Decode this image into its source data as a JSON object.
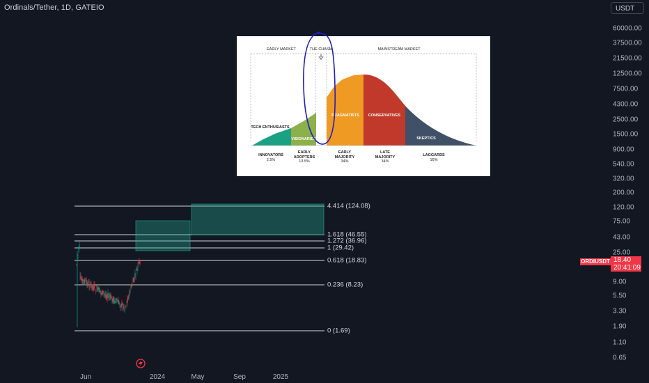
{
  "header": {
    "title": "Ordinals/Tether, 1D, GATEIO",
    "currency": "USDT"
  },
  "price_axis": {
    "labels": [
      "60000.00",
      "37500.00",
      "21500.00",
      "12500.00",
      "7500.00",
      "4300.00",
      "2500.00",
      "1500.00",
      "900.00",
      "540.00",
      "320.00",
      "200.00",
      "120.00",
      "75.00",
      "43.00",
      "25.00",
      "9.00",
      "5.50",
      "3.30",
      "1.90",
      "1.10",
      "0.65"
    ]
  },
  "time_axis": {
    "labels": [
      "Jun",
      "2024",
      "May",
      "Sep",
      "2025"
    ]
  },
  "fib_levels": [
    {
      "label": "4.414 (124.08)",
      "value": 124.08
    },
    {
      "label": "1.618 (46.55)",
      "value": 46.55
    },
    {
      "label": "1.272 (36.96)",
      "value": 36.96
    },
    {
      "label": "1 (29.42)",
      "value": 29.42
    },
    {
      "label": "0.618 (18.83)",
      "value": 18.83
    },
    {
      "label": "0.236 (8.23)",
      "value": 8.23
    },
    {
      "label": "0 (1.69)",
      "value": 1.69
    }
  ],
  "symbol_tag": "ORDIUSDT",
  "last_price": "18.40",
  "countdown": "20:41:09",
  "colors": {
    "background": "#131722",
    "up": "#089981",
    "down": "#f23645",
    "zone": "#22ab94",
    "chasm_ink": "#1f1fbf"
  },
  "infographic": {
    "early_market": "EARLY MARKET",
    "the_chasm": "THE CHASM",
    "mainstream_market": "MAINSTREAM MARKET",
    "segments": {
      "tech_enthusiasts": "TECH ENTHUSIASTS",
      "visionaries": "VISIONARIES",
      "pragmatists": "PRAGMATISTS",
      "conservatives": "CONSERVATIVES",
      "skeptics": "SKEPTICS"
    },
    "groups": [
      {
        "name": "INNOVATORS",
        "pct": "2.5%"
      },
      {
        "name": "EARLY ADOPTERS",
        "pct": "13.5%"
      },
      {
        "name": "EARLY MAJORITY",
        "pct": "34%"
      },
      {
        "name": "LATE MAJORITY",
        "pct": "34%"
      },
      {
        "name": "LAGGARDS",
        "pct": "16%"
      }
    ]
  }
}
